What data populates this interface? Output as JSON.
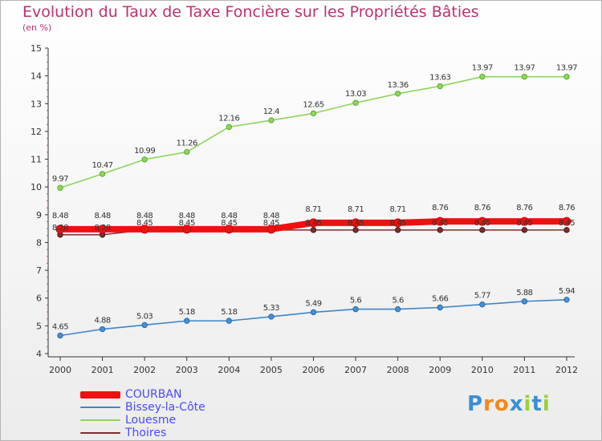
{
  "title": "Evolution du Taux de Taxe Foncière sur les Propriétés Bâties",
  "unit_label": "(en %)",
  "logo": {
    "text": "Proxiti",
    "letters": [
      "P",
      "r",
      "o",
      "x",
      "i",
      "t",
      "i"
    ],
    "colors": [
      "#3a8fd6",
      "#f28a1a",
      "#f28a1a",
      "#3a8fd6",
      "#9ccf3a",
      "#3a8fd6",
      "#9ccf3a"
    ]
  },
  "chart_data": {
    "type": "line",
    "title": "Evolution du Taux de Taxe Foncière sur les Propriétés Bâties",
    "ylabel": "(en %)",
    "xlabel": "",
    "ylim": [
      4,
      15
    ],
    "yticks": [
      "4",
      "5",
      "6",
      "7",
      "8",
      "9",
      "10",
      "11",
      "12",
      "13",
      "14",
      "15"
    ],
    "categories": [
      "2000",
      "2001",
      "2002",
      "2003",
      "2004",
      "2005",
      "2006",
      "2007",
      "2008",
      "2009",
      "2010",
      "2011",
      "2012"
    ],
    "series": [
      {
        "name": "COURBAN",
        "color": "#ee1111",
        "values": [
          8.48,
          8.48,
          8.48,
          8.48,
          8.48,
          8.48,
          8.71,
          8.71,
          8.71,
          8.76,
          8.76,
          8.76,
          8.76
        ],
        "labels": [
          "8.48",
          "8.48",
          "8.48",
          "8.48",
          "8.48",
          "8.48",
          "8.71",
          "8.71",
          "8.71",
          "8.76",
          "8.76",
          "8.76",
          "8.76"
        ]
      },
      {
        "name": "Bissey-la-Côte",
        "color": "#3d86c9",
        "values": [
          4.65,
          4.88,
          5.03,
          5.18,
          5.18,
          5.33,
          5.49,
          5.6,
          5.6,
          5.66,
          5.77,
          5.88,
          5.94
        ],
        "labels": [
          "4.65",
          "4.88",
          "5.03",
          "5.18",
          "5.18",
          "5.33",
          "5.49",
          "5.6",
          "5.6",
          "5.66",
          "5.77",
          "5.88",
          "5.94"
        ]
      },
      {
        "name": "Louesme",
        "color": "#8dd65a",
        "values": [
          9.97,
          10.47,
          10.99,
          11.26,
          12.16,
          12.4,
          12.65,
          13.03,
          13.36,
          13.63,
          13.97,
          13.97,
          13.97
        ],
        "labels": [
          "9.97",
          "10.47",
          "10.99",
          "11.26",
          "12.16",
          "12.4",
          "12.65",
          "13.03",
          "13.36",
          "13.63",
          "13.97",
          "13.97",
          "13.97"
        ]
      },
      {
        "name": "Thoires",
        "color": "#7d2e2e",
        "values": [
          8.28,
          8.28,
          8.45,
          8.45,
          8.45,
          8.45,
          8.45,
          8.45,
          8.45,
          8.45,
          8.45,
          8.45,
          8.45
        ],
        "labels": [
          "8.28",
          "8.28",
          "8.45",
          "8.45",
          "8.45",
          "8.45",
          "8.45",
          "8.45",
          "8.45",
          "8.45",
          "8.45",
          "8.45",
          "8.45"
        ]
      }
    ],
    "legend": [
      "COURBAN",
      "Bissey-la-Côte",
      "Louesme",
      "Thoires"
    ],
    "legend_position": "bottom-left",
    "grid": false
  }
}
